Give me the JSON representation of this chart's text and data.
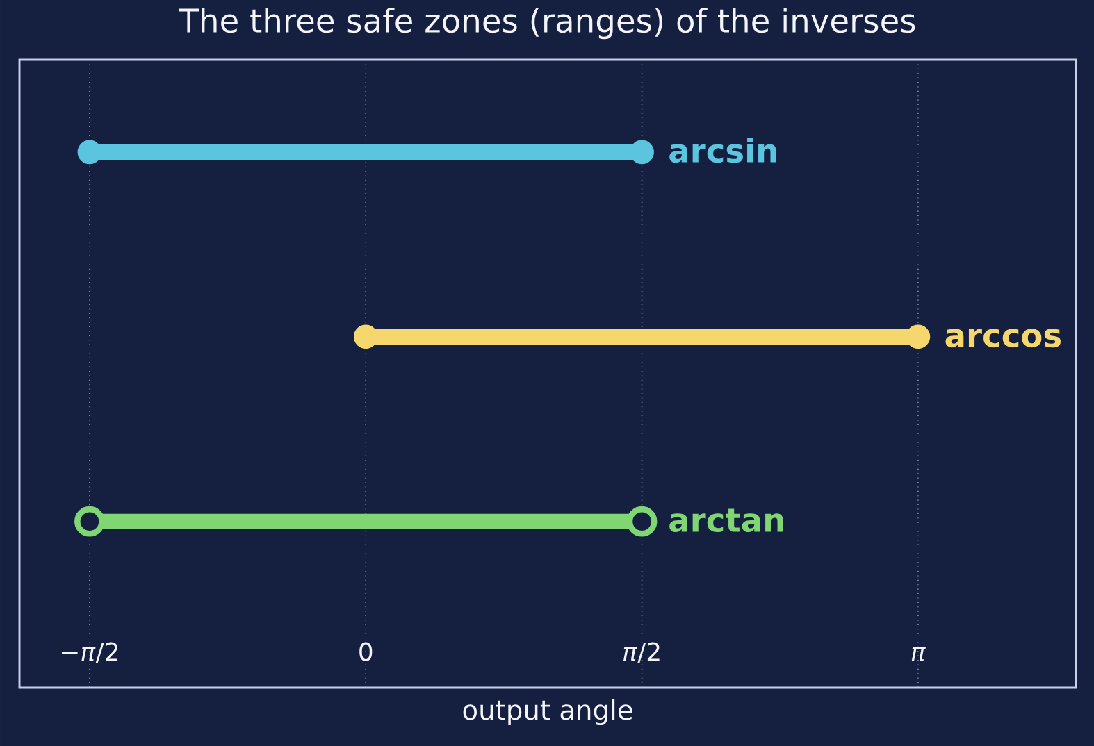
{
  "chart_data": {
    "type": "bar",
    "orientation": "horizontal",
    "title": "The three safe zones (ranges) of the inverses",
    "xlabel": "output angle",
    "categories": [
      "arcsin",
      "arccos",
      "arctan"
    ],
    "series": [
      {
        "type": "line",
        "x": [
          "arcsin",
          "arcsin"
        ],
        "values": [
          -1.571,
          1.571
        ],
        "color": "#5bc4df",
        "marker": "circle"
      },
      {
        "type": "line",
        "x": [
          "arccos",
          "arccos"
        ],
        "values": [
          0,
          3.142
        ],
        "color": "#f5d76e",
        "marker": "circle"
      },
      {
        "type": "line",
        "x": [
          "arctan",
          "arctan"
        ],
        "values": [
          -1.571,
          1.571
        ],
        "color": "#7fd672",
        "marker": "open circle"
      }
    ],
    "xlim": [
      -1.97,
      4.04
    ],
    "xticks": [
      {
        "value": -1.571,
        "label": "−*π*/2"
      },
      0,
      {
        "value": 1.571,
        "label": "*π*/2"
      },
      {
        "value": 3.142,
        "label": "*π*"
      }
    ],
    "grid": "x"
  }
}
